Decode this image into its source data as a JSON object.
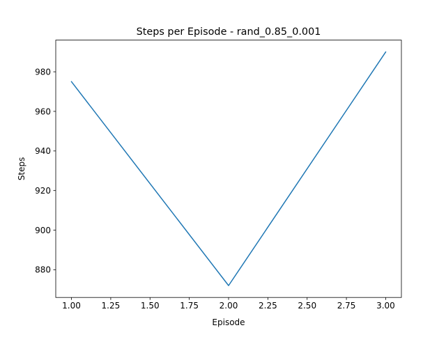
{
  "chart_data": {
    "type": "line",
    "title": "Steps per Episode - rand_0.85_0.001",
    "xlabel": "Episode",
    "ylabel": "Steps",
    "xlim": [
      0.9,
      3.1
    ],
    "ylim": [
      866,
      996
    ],
    "xticks": [
      1.0,
      1.25,
      1.5,
      1.75,
      2.0,
      2.25,
      2.5,
      2.75,
      3.0
    ],
    "xtick_labels": [
      "1.00",
      "1.25",
      "1.50",
      "1.75",
      "2.00",
      "2.25",
      "2.50",
      "2.75",
      "3.00"
    ],
    "yticks": [
      880,
      900,
      920,
      940,
      960,
      980
    ],
    "ytick_labels": [
      "880",
      "900",
      "920",
      "940",
      "960",
      "980"
    ],
    "grid": false,
    "series": [
      {
        "x": [
          1,
          2,
          3
        ],
        "y": [
          975,
          872,
          990
        ],
        "color": "#1f77b4"
      }
    ]
  }
}
